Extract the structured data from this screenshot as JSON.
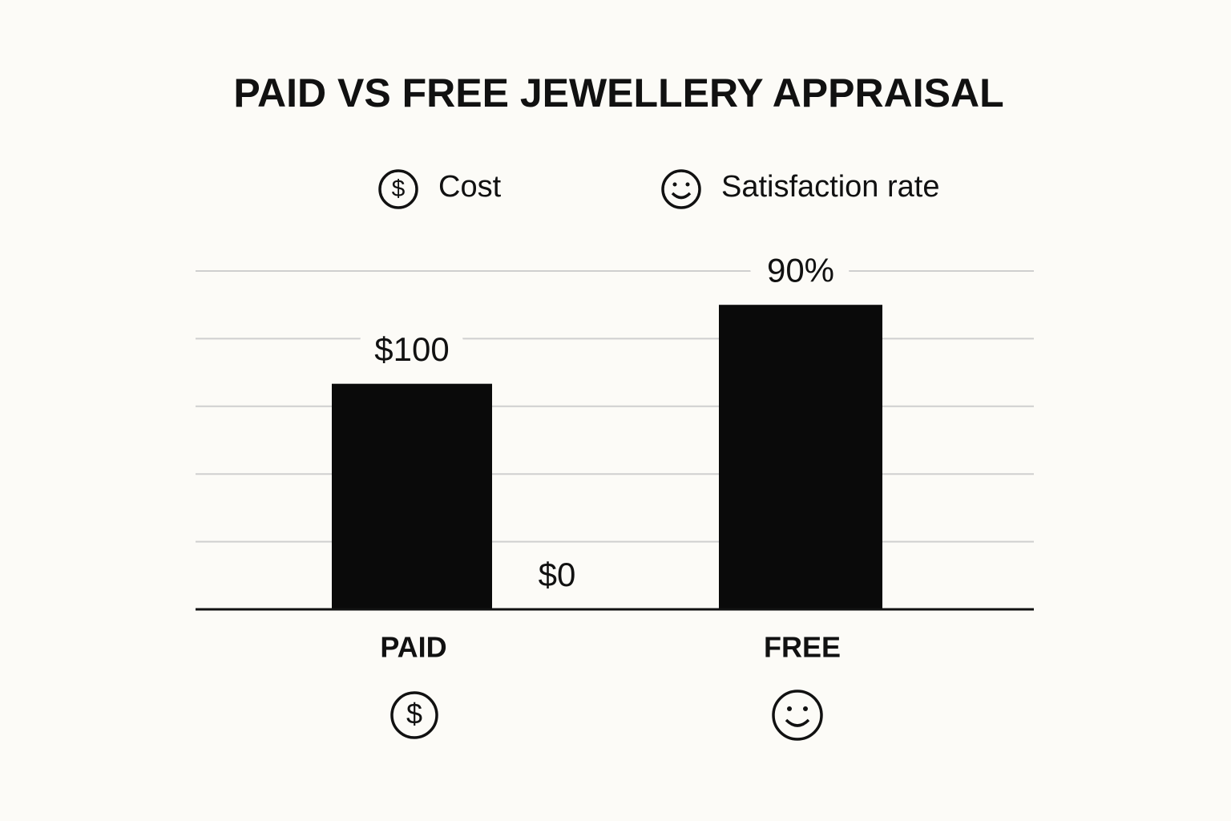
{
  "chart_data": {
    "type": "bar",
    "title": "PAID VS FREE JEWELLERY APPRAISAL",
    "categories": [
      "PAID",
      "FREE"
    ],
    "series": [
      {
        "name": "Cost",
        "color": "#0a0a0a",
        "values": [
          100,
          0
        ],
        "value_labels": [
          "$100",
          "$0"
        ]
      },
      {
        "name": "Satisfaction rate",
        "color": "#0a0a0a",
        "axis": "y2",
        "values": [
          null,
          90
        ],
        "value_labels": [
          null,
          "90%"
        ]
      }
    ],
    "ylim": [
      0,
      150
    ],
    "y2lim": [
      0,
      100
    ],
    "y2ticks": [
      0,
      20,
      40,
      60,
      80,
      100
    ],
    "grid": true
  }
}
